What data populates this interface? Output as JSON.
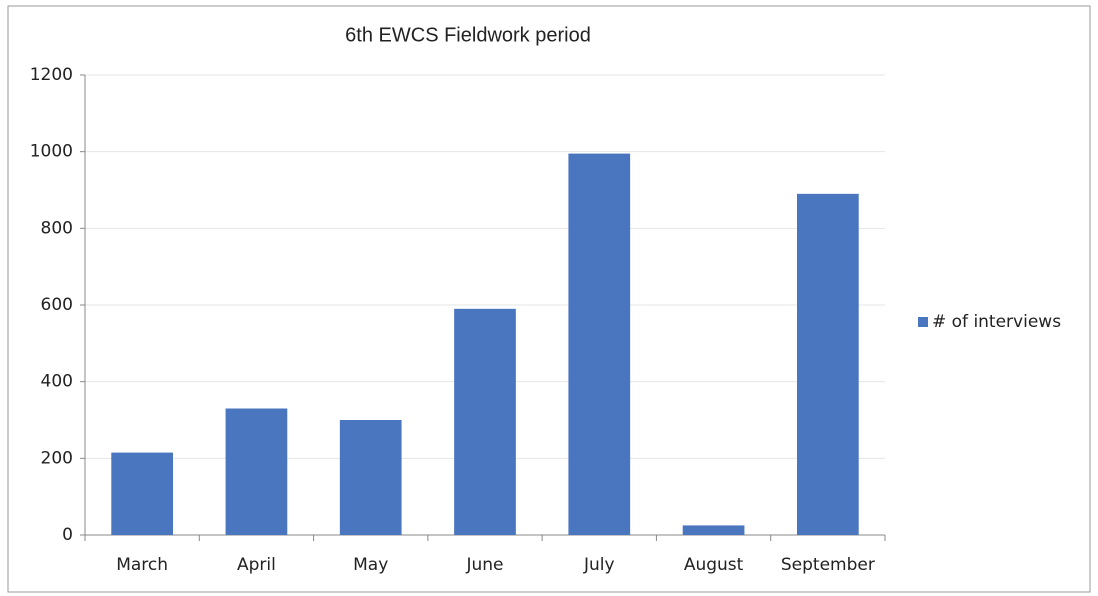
{
  "chart_data": {
    "type": "bar",
    "title": "6th EWCS Fieldwork period",
    "categories": [
      "March",
      "April",
      "May",
      "June",
      "July",
      "August",
      "September"
    ],
    "series": [
      {
        "name": "# of interviews",
        "color": "#4a76c0",
        "values": [
          215,
          330,
          300,
          590,
          995,
          25,
          890
        ]
      }
    ],
    "ylim": [
      0,
      1200
    ],
    "yticks": [
      0,
      200,
      400,
      600,
      800,
      1000,
      1200
    ],
    "grid": true,
    "legend": "right"
  }
}
